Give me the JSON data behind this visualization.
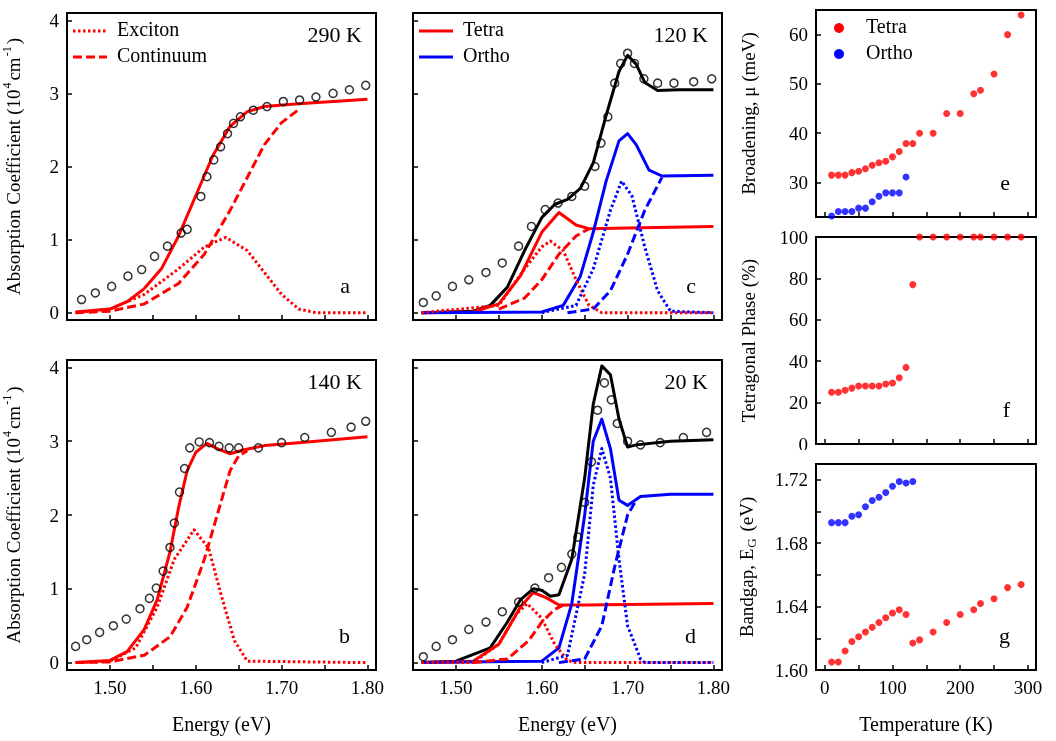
{
  "chart_data": [
    {
      "type": "line",
      "ylabel": "Absorption Coefficient (10$^{4}$cm$^{-1}$)",
      "xlim": [
        1.45,
        1.81
      ],
      "ylim": [
        -0.1,
        4.1
      ],
      "xticks": [
        1.5,
        1.55,
        1.6,
        1.65,
        1.7,
        1.75,
        1.8
      ],
      "yticks": [
        0,
        1,
        2,
        3,
        4
      ],
      "tick_labels": "y",
      "legend": "top left",
      "marker": "none",
      "annotations": [
        "290 K",
        "a"
      ],
      "series": [
        {
          "type": "scatter",
          "marker": "circle",
          "color": "#000000",
          "x": [
            1.467,
            1.483,
            1.502,
            1.521,
            1.537,
            1.552,
            1.567,
            1.583,
            1.59,
            1.606,
            1.613,
            1.621,
            1.629,
            1.637,
            1.644,
            1.652,
            1.667,
            1.683,
            1.702,
            1.721,
            1.74,
            1.76,
            1.779,
            1.798
          ],
          "values": [
            0.18,
            0.27,
            0.36,
            0.5,
            0.59,
            0.77,
            0.91,
            1.09,
            1.14,
            1.59,
            1.86,
            2.09,
            2.27,
            2.45,
            2.59,
            2.68,
            2.77,
            2.82,
            2.89,
            2.91,
            2.95,
            3.0,
            3.05,
            3.11
          ]
        },
        {
          "color": "#ff0000",
          "line_style": "solid",
          "x": [
            1.46,
            1.5,
            1.52,
            1.54,
            1.56,
            1.58,
            1.6,
            1.62,
            1.64,
            1.66,
            1.68,
            1.72,
            1.76,
            1.8
          ],
          "values": [
            0.01,
            0.05,
            0.15,
            0.33,
            0.6,
            1.05,
            1.6,
            2.15,
            2.55,
            2.75,
            2.82,
            2.86,
            2.89,
            2.92
          ]
        },
        {
          "name": "Exciton",
          "color": "#ff0000",
          "line_style": "dotted",
          "x": [
            1.46,
            1.5,
            1.54,
            1.58,
            1.61,
            1.635,
            1.66,
            1.68,
            1.7,
            1.72,
            1.74,
            1.8
          ],
          "values": [
            0,
            0.05,
            0.25,
            0.6,
            0.9,
            1.03,
            0.85,
            0.55,
            0.25,
            0.05,
            0,
            0
          ]
        },
        {
          "name": "Continuum",
          "color": "#ff0000",
          "line_style": "dashed",
          "x": [
            1.46,
            1.5,
            1.54,
            1.58,
            1.61,
            1.64,
            1.66,
            1.68,
            1.7,
            1.72
          ],
          "values": [
            0,
            0.02,
            0.12,
            0.4,
            0.8,
            1.4,
            1.85,
            2.3,
            2.6,
            2.78
          ]
        }
      ]
    },
    {
      "type": "line",
      "xlim": [
        1.45,
        1.81
      ],
      "ylim": [
        -0.1,
        4.1
      ],
      "xticks": [
        1.5,
        1.55,
        1.6,
        1.65,
        1.7,
        1.75,
        1.8
      ],
      "yticks": [
        0,
        1,
        2,
        3,
        4
      ],
      "tick_labels": false,
      "legend": "top left",
      "marker": "none",
      "annotations": [
        "120 K",
        "c"
      ],
      "series": [
        {
          "type": "scatter",
          "marker": "circle",
          "color": "#000000",
          "x": [
            1.462,
            1.477,
            1.496,
            1.515,
            1.535,
            1.554,
            1.573,
            1.588,
            1.604,
            1.619,
            1.635,
            1.65,
            1.662,
            1.669,
            1.677,
            1.685,
            1.692,
            1.7,
            1.708,
            1.719,
            1.735,
            1.754,
            1.777,
            1.798
          ],
          "values": [
            0.14,
            0.23,
            0.36,
            0.45,
            0.55,
            0.68,
            0.91,
            1.18,
            1.41,
            1.5,
            1.59,
            1.73,
            2.0,
            2.32,
            2.68,
            3.14,
            3.41,
            3.55,
            3.41,
            3.2,
            3.14,
            3.14,
            3.16,
            3.2
          ]
        },
        {
          "color": "#000000",
          "line_style": "solid",
          "x": [
            1.46,
            1.52,
            1.54,
            1.56,
            1.58,
            1.6,
            1.615,
            1.63,
            1.645,
            1.66,
            1.675,
            1.69,
            1.7,
            1.71,
            1.72,
            1.735,
            1.76,
            1.8
          ],
          "values": [
            0,
            0.02,
            0.1,
            0.35,
            0.85,
            1.3,
            1.48,
            1.55,
            1.7,
            2.05,
            2.7,
            3.3,
            3.52,
            3.4,
            3.15,
            3.04,
            3.05,
            3.05
          ]
        },
        {
          "name": "Tetra",
          "color": "#ff0000",
          "line_style": "solid",
          "x": [
            1.46,
            1.52,
            1.55,
            1.575,
            1.6,
            1.62,
            1.64,
            1.655,
            1.7,
            1.8
          ],
          "values": [
            0,
            0.01,
            0.12,
            0.5,
            1.1,
            1.37,
            1.2,
            1.15,
            1.16,
            1.18
          ]
        },
        {
          "color": "#ff0000",
          "line_style": "dotted",
          "x": [
            1.46,
            1.55,
            1.58,
            1.6,
            1.61,
            1.625,
            1.64,
            1.655,
            1.67,
            1.8
          ],
          "values": [
            0,
            0.1,
            0.6,
            0.9,
            0.98,
            0.85,
            0.45,
            0.1,
            0,
            0
          ]
        },
        {
          "color": "#ff0000",
          "line_style": "dashed",
          "x": [
            1.55,
            1.58,
            1.6,
            1.62,
            1.64,
            1.655
          ],
          "values": [
            0.05,
            0.2,
            0.45,
            0.8,
            1.05,
            1.15
          ]
        },
        {
          "name": "Ortho",
          "color": "#0000ff",
          "line_style": "solid",
          "x": [
            1.46,
            1.6,
            1.625,
            1.645,
            1.66,
            1.675,
            1.69,
            1.7,
            1.71,
            1.725,
            1.74,
            1.8
          ],
          "values": [
            0,
            0.01,
            0.1,
            0.5,
            1.1,
            1.8,
            2.35,
            2.45,
            2.3,
            1.95,
            1.87,
            1.88
          ]
        },
        {
          "color": "#0000ff",
          "line_style": "dotted",
          "x": [
            1.6,
            1.64,
            1.66,
            1.68,
            1.693,
            1.705,
            1.72,
            1.735,
            1.75,
            1.8
          ],
          "values": [
            0,
            0.1,
            0.6,
            1.4,
            1.8,
            1.6,
            0.9,
            0.3,
            0.02,
            0
          ]
        },
        {
          "color": "#0000ff",
          "line_style": "dashed",
          "x": [
            1.63,
            1.66,
            1.68,
            1.7,
            1.72,
            1.74
          ],
          "values": [
            0,
            0.05,
            0.3,
            0.8,
            1.4,
            1.85
          ]
        }
      ]
    },
    {
      "type": "scatter",
      "ylabel": "Broadening, μ (meV)",
      "xlim": [
        -13,
        312
      ],
      "ylim": [
        23,
        65
      ],
      "xticks": [
        0,
        {
          "value": 50,
          "label": null
        },
        100,
        {
          "value": 150,
          "label": null
        },
        200,
        {
          "value": 250,
          "label": null
        },
        300
      ],
      "yticks": [
        30,
        40,
        50,
        60
      ],
      "tick_labels": "y",
      "legend": "top left",
      "marker": "circle",
      "annotations": [
        "e"
      ],
      "series": [
        {
          "name": "Tetra",
          "color": "#ff0000",
          "x": [
            10,
            20,
            30,
            40,
            50,
            60,
            70,
            80,
            90,
            100,
            110,
            120,
            130,
            140,
            160,
            180,
            200,
            220,
            230,
            250,
            270,
            290
          ],
          "values": [
            31.5,
            31.5,
            31.5,
            32.0,
            32.3,
            32.8,
            33.5,
            34.0,
            34.3,
            35.2,
            36.3,
            37.9,
            37.9,
            40,
            40,
            44,
            44,
            48,
            48.7,
            52,
            60,
            64
          ]
        },
        {
          "name": "Ortho",
          "color": "#0000ff",
          "x": [
            10,
            20,
            30,
            40,
            50,
            60,
            70,
            80,
            90,
            100,
            110,
            120
          ],
          "values": [
            23.2,
            24.1,
            24.1,
            24.1,
            24.8,
            24.8,
            26.1,
            27.2,
            27.9,
            27.9,
            27.9,
            31.1
          ]
        }
      ]
    },
    {
      "type": "line",
      "ylabel": "Absorption Coefficient (10$^{4}$cm$^{-1}$)",
      "xlabel": "Energy (eV)",
      "xlim": [
        1.45,
        1.81
      ],
      "ylim": [
        -0.1,
        4.1
      ],
      "xticks": [
        {
          "value": 1.5,
          "label": "1.50"
        },
        {
          "value": 1.55,
          "label": null
        },
        {
          "value": 1.6,
          "label": "1.60"
        },
        {
          "value": 1.65,
          "label": null
        },
        {
          "value": 1.7,
          "label": "1.70"
        },
        {
          "value": 1.75,
          "label": null
        },
        {
          "value": 1.8,
          "label": "1.80"
        }
      ],
      "yticks": [
        0,
        1,
        2,
        3,
        4
      ],
      "marker": "none",
      "annotations": [
        "140 K",
        "b"
      ],
      "series": [
        {
          "type": "scatter",
          "marker": "circle",
          "color": "#000000",
          "x": [
            1.46,
            1.473,
            1.488,
            1.504,
            1.519,
            1.535,
            1.546,
            1.554,
            1.562,
            1.57,
            1.575,
            1.581,
            1.587,
            1.593,
            1.604,
            1.616,
            1.627,
            1.639,
            1.65,
            1.673,
            1.7,
            1.727,
            1.758,
            1.781,
            1.798
          ],
          "values": [
            0.22,
            0.31,
            0.41,
            0.5,
            0.59,
            0.73,
            0.87,
            1.01,
            1.24,
            1.56,
            1.89,
            2.31,
            2.63,
            2.91,
            2.99,
            2.98,
            2.93,
            2.91,
            2.91,
            2.91,
            2.98,
            3.05,
            3.12,
            3.19,
            3.27
          ]
        },
        {
          "color": "#ff0000",
          "line_style": "solid",
          "x": [
            1.46,
            1.5,
            1.52,
            1.54,
            1.555,
            1.57,
            1.58,
            1.59,
            1.6,
            1.613,
            1.625,
            1.64,
            1.655,
            1.68,
            1.72,
            1.76,
            1.8
          ],
          "values": [
            0,
            0.03,
            0.15,
            0.45,
            0.85,
            1.5,
            2.1,
            2.6,
            2.85,
            2.97,
            2.9,
            2.83,
            2.88,
            2.94,
            2.98,
            3.02,
            3.06
          ]
        },
        {
          "color": "#ff0000",
          "line_style": "dotted",
          "x": [
            1.46,
            1.5,
            1.53,
            1.555,
            1.575,
            1.598,
            1.615,
            1.63,
            1.645,
            1.66,
            1.8
          ],
          "values": [
            0,
            0.02,
            0.2,
            0.75,
            1.4,
            1.8,
            1.55,
            0.9,
            0.3,
            0.02,
            0
          ]
        },
        {
          "color": "#ff0000",
          "line_style": "dashed",
          "x": [
            1.46,
            1.5,
            1.54,
            1.57,
            1.59,
            1.61,
            1.625,
            1.64,
            1.65,
            1.66
          ],
          "values": [
            0,
            0.01,
            0.1,
            0.35,
            0.75,
            1.4,
            2.0,
            2.6,
            2.8,
            2.87
          ]
        }
      ]
    },
    {
      "type": "line",
      "xlabel": "Energy (eV)",
      "xlim": [
        1.45,
        1.81
      ],
      "ylim": [
        -0.1,
        4.1
      ],
      "xticks": [
        {
          "value": 1.5,
          "label": "1.50"
        },
        {
          "value": 1.55,
          "label": null
        },
        {
          "value": 1.6,
          "label": "1.60"
        },
        {
          "value": 1.65,
          "label": null
        },
        {
          "value": 1.7,
          "label": "1.70"
        },
        {
          "value": 1.75,
          "label": null
        },
        {
          "value": 1.8,
          "label": "1.80"
        }
      ],
      "yticks": [
        0,
        1,
        2,
        3,
        4
      ],
      "tick_labels": "x",
      "marker": "none",
      "annotations": [
        "20 K",
        "d"
      ],
      "series": [
        {
          "type": "scatter",
          "marker": "circle",
          "color": "#000000",
          "x": [
            1.462,
            1.477,
            1.496,
            1.515,
            1.535,
            1.554,
            1.573,
            1.592,
            1.608,
            1.623,
            1.635,
            1.642,
            1.65,
            1.658,
            1.665,
            1.673,
            1.681,
            1.688,
            1.7,
            1.715,
            1.738,
            1.765,
            1.792
          ],
          "values": [
            0.08,
            0.22,
            0.31,
            0.45,
            0.55,
            0.69,
            0.82,
            1.01,
            1.15,
            1.29,
            1.47,
            1.7,
            2.17,
            2.72,
            3.42,
            3.79,
            3.56,
            3.24,
            3.0,
            2.95,
            2.98,
            3.05,
            3.12
          ]
        },
        {
          "color": "#000000",
          "line_style": "solid",
          "x": [
            1.46,
            1.5,
            1.54,
            1.56,
            1.575,
            1.59,
            1.6,
            1.61,
            1.62,
            1.635,
            1.65,
            1.66,
            1.67,
            1.68,
            1.69,
            1.7,
            1.71,
            1.75,
            1.8
          ],
          "values": [
            0,
            0.02,
            0.2,
            0.55,
            0.85,
            1.0,
            0.98,
            0.9,
            0.92,
            1.4,
            2.5,
            3.5,
            4.02,
            3.9,
            3.3,
            2.92,
            2.95,
            3.0,
            3.02
          ]
        },
        {
          "color": "#ff0000",
          "line_style": "solid",
          "x": [
            1.46,
            1.52,
            1.55,
            1.575,
            1.59,
            1.605,
            1.62,
            1.65,
            1.8
          ],
          "values": [
            0,
            0.02,
            0.25,
            0.75,
            0.95,
            0.88,
            0.78,
            0.78,
            0.8
          ]
        },
        {
          "color": "#ff0000",
          "line_style": "dotted",
          "x": [
            1.46,
            1.52,
            1.55,
            1.57,
            1.583,
            1.6,
            1.615,
            1.63,
            1.64,
            1.8
          ],
          "values": [
            0,
            0,
            0.25,
            0.65,
            0.8,
            0.6,
            0.25,
            0.03,
            0,
            0
          ]
        },
        {
          "color": "#ff0000",
          "line_style": "dashed",
          "x": [
            1.52,
            1.56,
            1.585,
            1.6,
            1.615,
            1.625
          ],
          "values": [
            0,
            0.05,
            0.3,
            0.55,
            0.72,
            0.78
          ]
        },
        {
          "color": "#0000ff",
          "line_style": "solid",
          "x": [
            1.46,
            1.6,
            1.62,
            1.635,
            1.65,
            1.66,
            1.67,
            1.68,
            1.69,
            1.7,
            1.715,
            1.75,
            1.8
          ],
          "values": [
            0,
            0.02,
            0.2,
            0.8,
            2.0,
            3.0,
            3.3,
            2.9,
            2.2,
            2.13,
            2.25,
            2.28,
            2.28
          ]
        },
        {
          "color": "#0000ff",
          "line_style": "dotted",
          "x": [
            1.6,
            1.63,
            1.65,
            1.66,
            1.67,
            1.68,
            1.69,
            1.7,
            1.715,
            1.72,
            1.8
          ],
          "values": [
            0,
            0.1,
            1.2,
            2.4,
            2.9,
            2.5,
            1.4,
            0.5,
            0.05,
            0,
            0
          ]
        },
        {
          "color": "#0000ff",
          "line_style": "dashed",
          "x": [
            1.62,
            1.65,
            1.67,
            1.685,
            1.7,
            1.71
          ],
          "values": [
            0,
            0.05,
            0.5,
            1.3,
            2.0,
            2.2
          ]
        }
      ]
    },
    {
      "type": "scatter",
      "ylabel": "Tetragonal Phase (%)",
      "xlim": [
        -13,
        312
      ],
      "ylim": [
        0,
        100
      ],
      "xticks": [
        0,
        {
          "value": 50,
          "label": null
        },
        100,
        {
          "value": 150,
          "label": null
        },
        200,
        {
          "value": 250,
          "label": null
        },
        300
      ],
      "yticks": [
        0,
        20,
        40,
        60,
        80,
        100
      ],
      "tick_labels": "y",
      "marker": "circle",
      "annotations": [
        "f"
      ],
      "series": [
        {
          "color": "#ff0000",
          "x": [
            10,
            20,
            30,
            40,
            50,
            60,
            70,
            80,
            90,
            100,
            110,
            120,
            130,
            140,
            160,
            180,
            200,
            220,
            230,
            250,
            270,
            290
          ],
          "values": [
            25,
            25,
            26,
            27,
            28,
            28,
            28,
            28,
            29,
            29.5,
            32,
            37,
            77,
            100,
            100,
            100,
            100,
            100,
            100,
            100,
            100,
            100
          ]
        }
      ]
    },
    {
      "type": "scatter",
      "ylabel": "Bandgap, E$_{G}$ (eV)",
      "xlabel": "Temperature (K)",
      "xlim": [
        -13,
        312
      ],
      "ylim": [
        1.6,
        1.73
      ],
      "xticks": [
        0,
        {
          "value": 50,
          "label": null
        },
        100,
        {
          "value": 150,
          "label": null
        },
        200,
        {
          "value": 250,
          "label": null
        },
        300
      ],
      "yticks": [
        {
          "value": 1.6,
          "label": "1.60"
        },
        {
          "value": 1.62,
          "label": null
        },
        {
          "value": 1.64,
          "label": "1.64"
        },
        {
          "value": 1.66,
          "label": null
        },
        {
          "value": 1.68,
          "label": "1.68"
        },
        {
          "value": 1.7,
          "label": null
        },
        {
          "value": 1.72,
          "label": "1.72"
        }
      ],
      "marker": "circle",
      "annotations": [
        "g"
      ],
      "series": [
        {
          "color": "#0000ff",
          "x": [
            10,
            20,
            30,
            40,
            50,
            60,
            70,
            80,
            90,
            100,
            110,
            120,
            130
          ],
          "values": [
            1.693,
            1.693,
            1.693,
            1.697,
            1.698,
            1.703,
            1.707,
            1.709,
            1.712,
            1.716,
            1.719,
            1.718,
            1.719
          ]
        },
        {
          "color": "#ff0000",
          "x": [
            10,
            20,
            30,
            40,
            50,
            60,
            70,
            80,
            90,
            100,
            110,
            120,
            130,
            140,
            160,
            180,
            200,
            220,
            230,
            250,
            270,
            290
          ],
          "values": [
            1.605,
            1.605,
            1.612,
            1.618,
            1.621,
            1.624,
            1.627,
            1.63,
            1.633,
            1.636,
            1.638,
            1.635,
            1.617,
            1.619,
            1.624,
            1.63,
            1.635,
            1.638,
            1.642,
            1.645,
            1.652,
            1.654
          ]
        }
      ]
    }
  ]
}
